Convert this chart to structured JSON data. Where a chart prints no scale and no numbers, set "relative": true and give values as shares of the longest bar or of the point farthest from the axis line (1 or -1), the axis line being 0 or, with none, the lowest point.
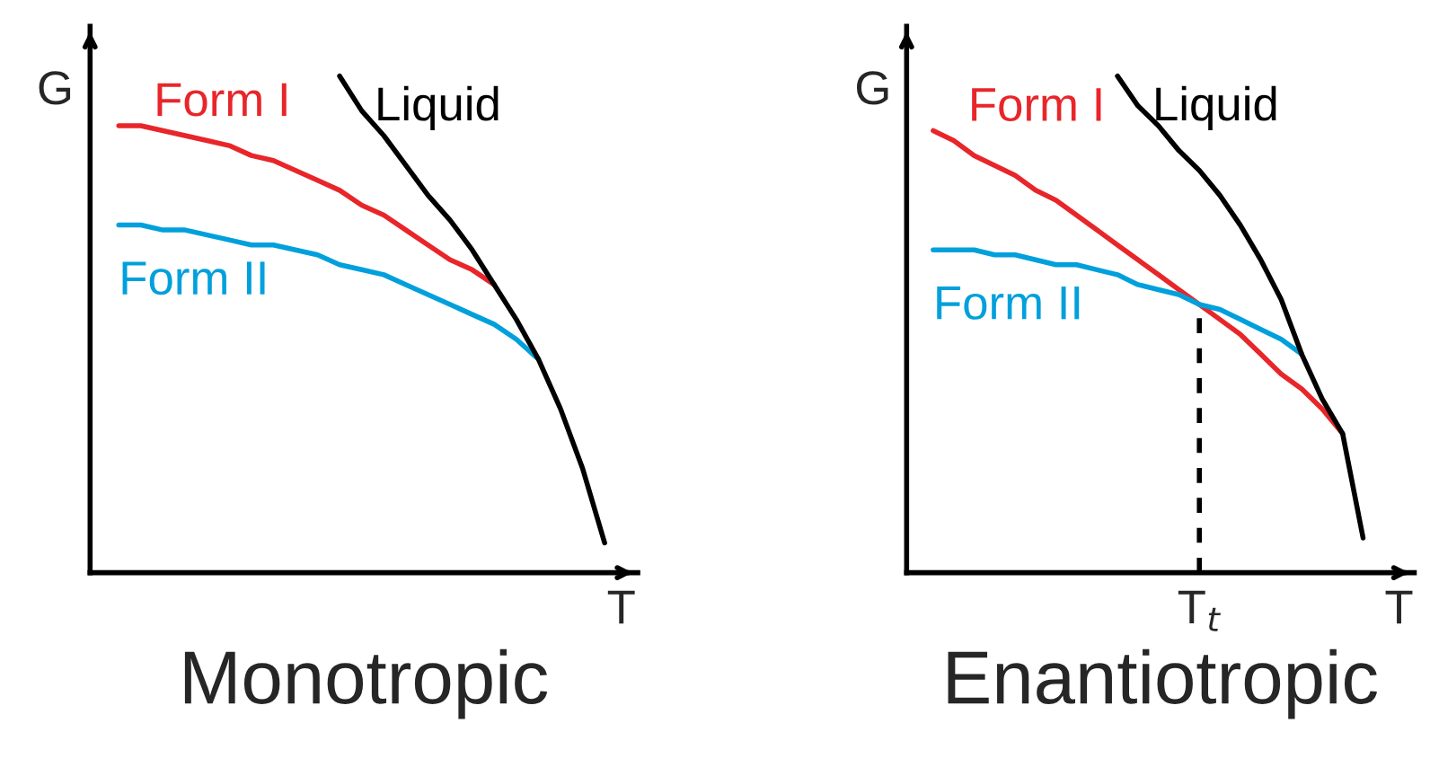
{
  "chart_data": [
    {
      "type": "line",
      "title": "Monotropic",
      "xlabel": "T",
      "ylabel": "G",
      "relative": true,
      "categories": [
        null,
        null,
        null,
        null,
        null,
        null,
        null,
        null,
        null,
        null,
        null,
        null,
        null,
        null,
        null,
        null,
        null,
        null,
        null,
        null,
        null,
        null,
        null
      ],
      "series": [
        {
          "name": "Form I",
          "color": "#e8262a",
          "values": [
            0.9,
            0.9,
            0.89,
            0.88,
            0.87,
            0.86,
            0.84,
            0.83,
            0.81,
            0.79,
            0.77,
            0.74,
            0.72,
            0.69,
            0.66,
            0.63,
            0.61,
            0.58,
            null,
            null,
            null,
            null,
            null
          ]
        },
        {
          "name": "Form II",
          "color": "#00a0dc",
          "values": [
            0.7,
            0.7,
            0.69,
            0.69,
            0.68,
            0.67,
            0.66,
            0.66,
            0.65,
            0.64,
            0.62,
            0.61,
            0.6,
            0.58,
            0.56,
            0.54,
            0.52,
            0.5,
            0.47,
            0.43,
            null,
            null,
            null
          ]
        },
        {
          "name": "Liquid",
          "color": "#000000",
          "values": [
            null,
            null,
            null,
            null,
            null,
            null,
            null,
            null,
            null,
            null,
            1.0,
            0.93,
            0.88,
            0.82,
            0.76,
            0.71,
            0.65,
            0.58,
            0.51,
            0.43,
            0.33,
            0.21,
            0.06
          ]
        }
      ]
    },
    {
      "type": "line",
      "title": "Enantiotropic",
      "xlabel": "T",
      "ylabel": "G",
      "relative": true,
      "categories": [
        null,
        null,
        null,
        null,
        null,
        null,
        null,
        null,
        null,
        null,
        null,
        null,
        null,
        null,
        null,
        null,
        null,
        null,
        null,
        null,
        null,
        null,
        null
      ],
      "series": [
        {
          "name": "Form I",
          "color": "#e8262a",
          "values": [
            0.89,
            0.87,
            0.84,
            0.82,
            0.8,
            0.77,
            0.75,
            0.72,
            0.69,
            0.66,
            0.63,
            0.6,
            0.57,
            0.54,
            0.51,
            0.48,
            0.44,
            0.4,
            0.37,
            0.33,
            0.28,
            null,
            null
          ]
        },
        {
          "name": "Form II",
          "color": "#00a0dc",
          "values": [
            0.65,
            0.65,
            0.65,
            0.64,
            0.64,
            0.63,
            0.62,
            0.62,
            0.61,
            0.6,
            0.58,
            0.57,
            0.56,
            0.54,
            0.53,
            0.51,
            0.49,
            0.47,
            0.44,
            null,
            null,
            null,
            null
          ]
        },
        {
          "name": "Liquid",
          "color": "#000000",
          "values": [
            null,
            null,
            null,
            null,
            null,
            null,
            null,
            null,
            null,
            1.0,
            0.94,
            0.9,
            0.85,
            0.81,
            0.76,
            0.7,
            0.63,
            0.55,
            0.44,
            0.35,
            0.28,
            0.07,
            null
          ]
        }
      ],
      "annotations": [
        "T$_{t}$"
      ]
    }
  ]
}
